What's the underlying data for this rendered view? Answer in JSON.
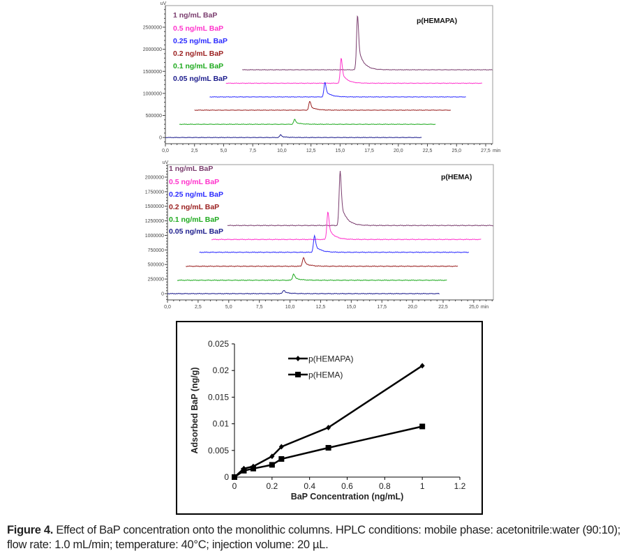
{
  "caption": {
    "label": "Figure 4.",
    "text": " Effect of BaP concentration onto the monolithic columns. HPLC conditions: mobile phase: acetonitrile:water (90:10); flow rate: 1.0 mL/min; temperature: 40°C; injection volume: 20 µL."
  },
  "chart_data": [
    {
      "type": "line",
      "title": "p(HEMAPA)",
      "ylabel": "uV",
      "xunit": "min",
      "xlim": [
        0,
        28.1
      ],
      "ylim": [
        -140000,
        2990000
      ],
      "xticks": [
        "0,0",
        "2,5",
        "5,0",
        "7,5",
        "10,0",
        "12,5",
        "15,0",
        "17,5",
        "20,0",
        "22,5",
        "25,0",
        "27,5"
      ],
      "yticks": [
        "0",
        "500000",
        "1000000",
        "1500000",
        "2000000",
        "2500000"
      ],
      "legend_position": "top-left",
      "series": [
        {
          "name": "1 ng/mL BaP",
          "color": "#7a3d6e",
          "start": 6.6,
          "end": 28.1,
          "offset": 1535000,
          "retention_time": 16.5,
          "peak_height": 1245000
        },
        {
          "name": "0.5 ng/mL BaP",
          "color": "#ff33cc",
          "start": 5.2,
          "end": 27.2,
          "offset": 1230000,
          "retention_time": 15.1,
          "peak_height": 570000
        },
        {
          "name": "0.25 ng/mL BaP",
          "color": "#2b2bff",
          "start": 3.8,
          "end": 25.8,
          "offset": 920000,
          "retention_time": 13.7,
          "peak_height": 330000
        },
        {
          "name": "0.2 ng/mL BaP",
          "color": "#9a1f1f",
          "start": 2.5,
          "end": 24.5,
          "offset": 620000,
          "retention_time": 12.4,
          "peak_height": 200000
        },
        {
          "name": "0.1 ng/mL BaP",
          "color": "#1faa1f",
          "start": 1.2,
          "end": 23.2,
          "offset": 300000,
          "retention_time": 11.1,
          "peak_height": 110000
        },
        {
          "name": "0.05 ng/mL BaP",
          "color": "#1c1c8c",
          "start": 0,
          "end": 22.0,
          "offset": 0,
          "retention_time": 9.9,
          "peak_height": 60000
        }
      ]
    },
    {
      "type": "line",
      "title": "p(HEMA)",
      "ylabel": "uV",
      "xunit": "min",
      "xlim": [
        0,
        26.6
      ],
      "ylim": [
        -108000,
        2215000
      ],
      "xticks": [
        "0,0",
        "2,5",
        "5,0",
        "7,5",
        "10,0",
        "12,5",
        "15,0",
        "17,5",
        "20,0",
        "22,5",
        "25,0"
      ],
      "yticks": [
        "0",
        "250000",
        "500000",
        "750000",
        "1000000",
        "1250000",
        "1500000",
        "1750000",
        "2000000"
      ],
      "legend_position": "top-left",
      "series": [
        {
          "name": "1 ng/mL BaP",
          "color": "#7a3d6e",
          "start": 4.9,
          "end": 26.6,
          "offset": 1170000,
          "retention_time": 14.1,
          "peak_height": 930000
        },
        {
          "name": "0.5 ng/mL BaP",
          "color": "#ff33cc",
          "start": 3.6,
          "end": 25.6,
          "offset": 930000,
          "retention_time": 13.1,
          "peak_height": 480000
        },
        {
          "name": "0.25 ng/mL BaP",
          "color": "#2b2bff",
          "start": 2.6,
          "end": 24.6,
          "offset": 710000,
          "retention_time": 12.0,
          "peak_height": 280000
        },
        {
          "name": "0.2 ng/mL BaP",
          "color": "#9a1f1f",
          "start": 1.5,
          "end": 23.7,
          "offset": 470000,
          "retention_time": 11.1,
          "peak_height": 150000
        },
        {
          "name": "0.1 ng/mL BaP",
          "color": "#1faa1f",
          "start": 0.8,
          "end": 22.8,
          "offset": 230000,
          "retention_time": 10.3,
          "peak_height": 110000
        },
        {
          "name": "0.05 ng/mL BaP",
          "color": "#1c1c8c",
          "start": 0,
          "end": 22.2,
          "offset": 0,
          "retention_time": 9.5,
          "peak_height": 60000
        }
      ]
    },
    {
      "type": "line",
      "title": "",
      "xlabel": "BaP Concentration (ng/mL)",
      "ylabel": "Adsorbed BaP (ng/g)",
      "xlim": [
        0,
        1.2
      ],
      "ylim": [
        0,
        0.025
      ],
      "xticks": [
        "0",
        "0.2",
        "0.4",
        "0.6",
        "0.8",
        "1",
        "1.2"
      ],
      "yticks": [
        "0",
        "0.005",
        "0.01",
        "0.015",
        "0.02",
        "0.025"
      ],
      "grid": false,
      "legend_position": "top-center",
      "series": [
        {
          "name": "p(HEMAPA)",
          "marker": "diamond",
          "x": [
            0,
            0.05,
            0.1,
            0.2,
            0.25,
            0.5,
            1
          ],
          "y": [
            0,
            0.0016,
            0.002,
            0.0039,
            0.0057,
            0.0093,
            0.0209
          ]
        },
        {
          "name": "p(HEMA)",
          "marker": "square",
          "x": [
            0,
            0.05,
            0.1,
            0.2,
            0.25,
            0.5,
            1
          ],
          "y": [
            0,
            0.0012,
            0.0016,
            0.0023,
            0.0034,
            0.0055,
            0.0095
          ]
        }
      ]
    }
  ]
}
